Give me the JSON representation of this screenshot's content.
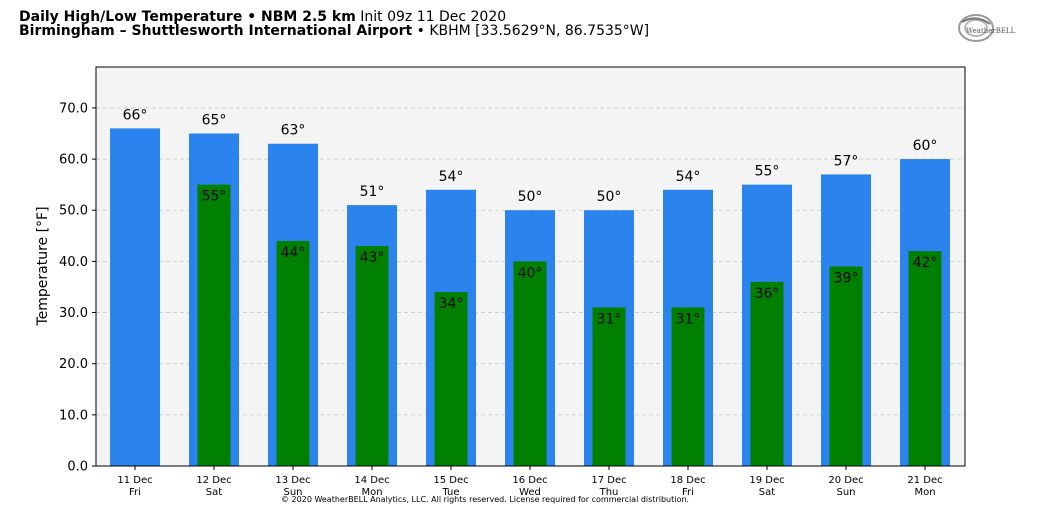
{
  "header": {
    "line1_bold": "Daily High/Low Temperature • NBM 2.5 km",
    "line1_rest": "Init 09z 11 Dec 2020",
    "line2_bold": "Birmingham – Shuttlesworth International Airport",
    "line2_rest": "• KBHM [33.5629°N, 86.7535°W]"
  },
  "logo": {
    "text": "WeatherBELL"
  },
  "copyright": "© 2020 WeatherBELL Analytics, LLC. All rights reserved. License required for commercial distribution.",
  "chart_data": {
    "type": "bar",
    "ylabel": "Temperature [°F]",
    "xlabel": "",
    "ylim": [
      0,
      78
    ],
    "yticks": [
      0,
      10,
      20,
      30,
      40,
      50,
      60,
      70
    ],
    "ytick_labels": [
      "0.0",
      "10.0",
      "20.0",
      "30.0",
      "40.0",
      "50.0",
      "60.0",
      "70.0"
    ],
    "grid": true,
    "categories": [
      {
        "date": "11 Dec",
        "day": "Fri"
      },
      {
        "date": "12 Dec",
        "day": "Sat"
      },
      {
        "date": "13 Dec",
        "day": "Sun"
      },
      {
        "date": "14 Dec",
        "day": "Mon"
      },
      {
        "date": "15 Dec",
        "day": "Tue"
      },
      {
        "date": "16 Dec",
        "day": "Wed"
      },
      {
        "date": "17 Dec",
        "day": "Thu"
      },
      {
        "date": "18 Dec",
        "day": "Fri"
      },
      {
        "date": "19 Dec",
        "day": "Sat"
      },
      {
        "date": "20 Dec",
        "day": "Sun"
      },
      {
        "date": "21 Dec",
        "day": "Mon"
      }
    ],
    "series": [
      {
        "key": "high",
        "color": "#2b83ee",
        "values": [
          66,
          65,
          63,
          51,
          54,
          50,
          50,
          54,
          55,
          57,
          60
        ],
        "labels": [
          "66°",
          "65°",
          "63°",
          "51°",
          "54°",
          "50°",
          "50°",
          "54°",
          "55°",
          "57°",
          "60°"
        ]
      },
      {
        "key": "low",
        "color": "#008000",
        "values": [
          null,
          55,
          44,
          43,
          34,
          40,
          31,
          31,
          36,
          39,
          42
        ],
        "labels": [
          "",
          "55°",
          "44°",
          "43°",
          "34°",
          "40°",
          "31°",
          "31°",
          "36°",
          "39°",
          "42°"
        ]
      }
    ],
    "plot_background": "#f4f4f4"
  }
}
